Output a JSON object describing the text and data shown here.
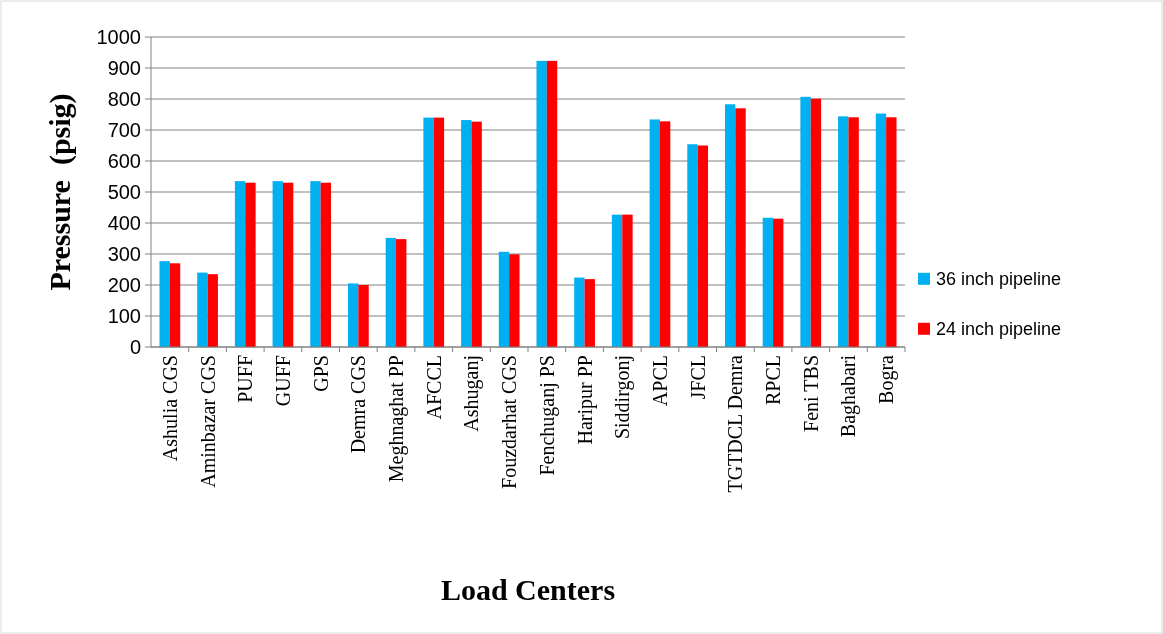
{
  "chart_data": {
    "type": "bar",
    "xlabel": "Load Centers",
    "ylabel": "Pressure  (psig)",
    "categories": [
      "Ashulia CGS",
      "Aminbazar CGS",
      "PUFF",
      "GUFF",
      "GPS",
      "Demra CGS",
      "Meghnaghat PP",
      "AFCCL",
      "Ashuganj",
      "Fouzdarhat CGS",
      "Fenchuganj PS",
      "Haripur PP",
      "Siddirgonj",
      "APCL",
      "JFCL",
      "TGTDCL Demra",
      "RPCL",
      "Feni TBS",
      "Baghabari",
      "Bogra"
    ],
    "series": [
      {
        "name": "36 inch pipeline",
        "color": "#00b0f0",
        "values": [
          277,
          240,
          535,
          535,
          535,
          205,
          352,
          740,
          732,
          307,
          923,
          224,
          427,
          734,
          654,
          783,
          417,
          807,
          744,
          753
        ]
      },
      {
        "name": "24 inch pipeline",
        "color": "#ff0000",
        "values": [
          270,
          235,
          530,
          530,
          530,
          200,
          348,
          740,
          727,
          299,
          923,
          219,
          427,
          728,
          650,
          770,
          414,
          801,
          741,
          741
        ]
      }
    ],
    "ylim": [
      0,
      1000
    ],
    "yticks": [
      0,
      100,
      200,
      300,
      400,
      500,
      600,
      700,
      800,
      900,
      1000
    ],
    "grid": "y",
    "legend": "right"
  }
}
